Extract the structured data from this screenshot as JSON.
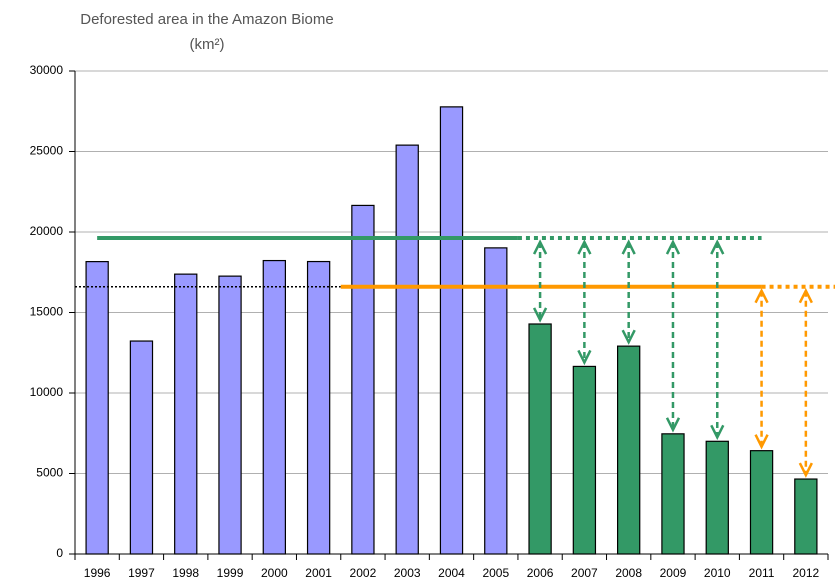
{
  "chart_data": {
    "type": "bar",
    "title": "Deforested area in the Amazon Biome",
    "subtitle": "(km²)",
    "categories": [
      "1996",
      "1997",
      "1998",
      "1999",
      "2000",
      "2001",
      "2002",
      "2003",
      "2004",
      "2005",
      "2006",
      "2007",
      "2008",
      "2009",
      "2010",
      "2011",
      "2012"
    ],
    "values": [
      18161,
      13227,
      17383,
      17259,
      18226,
      18165,
      21651,
      25396,
      27772,
      19014,
      14286,
      11651,
      12911,
      7464,
      7000,
      6418,
      4656
    ],
    "colors": [
      "#9999ff",
      "#9999ff",
      "#9999ff",
      "#9999ff",
      "#9999ff",
      "#9999ff",
      "#9999ff",
      "#9999ff",
      "#9999ff",
      "#9999ff",
      "#339966",
      "#339966",
      "#339966",
      "#339966",
      "#339966",
      "#339966",
      "#339966"
    ],
    "reference_lines": [
      {
        "value": 19625,
        "color": "#339966"
      },
      {
        "value": 16600,
        "color": "#ff9900"
      }
    ],
    "ylim": [
      0,
      30000
    ],
    "yticks": [
      0,
      5000,
      10000,
      15000,
      20000,
      25000,
      30000
    ],
    "grid": true
  }
}
